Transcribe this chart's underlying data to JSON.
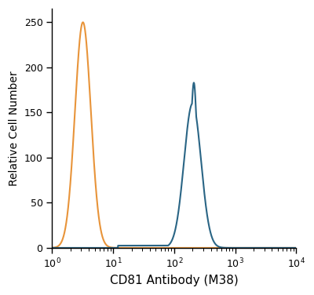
{
  "title": "",
  "xlabel": "CD81 Antibody (M38)",
  "ylabel": "Relative Cell Number",
  "xlim_log": [
    1,
    10000
  ],
  "ylim": [
    0,
    265
  ],
  "yticks": [
    0,
    50,
    100,
    150,
    200,
    250
  ],
  "xtick_positions": [
    1,
    10,
    100,
    1000,
    10000
  ],
  "orange_color": "#E8943A",
  "blue_color": "#2A6585",
  "orange_peak_x": 3.2,
  "orange_peak_y": 250,
  "orange_sigma": 0.3,
  "blue_peak1_x": 210,
  "blue_peak1_y": 183,
  "blue_peak1_sigma": 0.13,
  "blue_peak2_x": 200,
  "blue_peak2_y": 160,
  "blue_peak2_sigma": 0.32,
  "blue_baseline_y": 2.5,
  "linewidth": 1.5,
  "background_color": "#ffffff"
}
